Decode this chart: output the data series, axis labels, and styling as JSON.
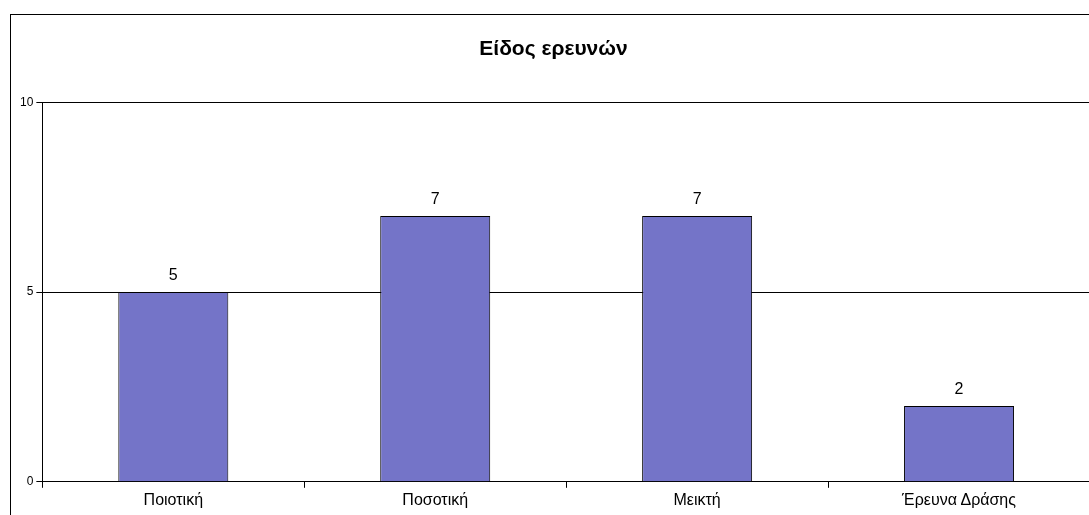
{
  "chart_data": {
    "type": "bar",
    "title": "Είδος ερευνών",
    "categories": [
      "Ποιοτική",
      "Ποσοτική",
      "Μεικτή",
      "Έρευνα Δράσης"
    ],
    "values": [
      5,
      7,
      7,
      2
    ],
    "color": "#7474c8",
    "ylim": [
      0,
      10
    ],
    "yticks": [
      0,
      5,
      10
    ],
    "grid": "y",
    "data_labels": true,
    "legend": false
  }
}
